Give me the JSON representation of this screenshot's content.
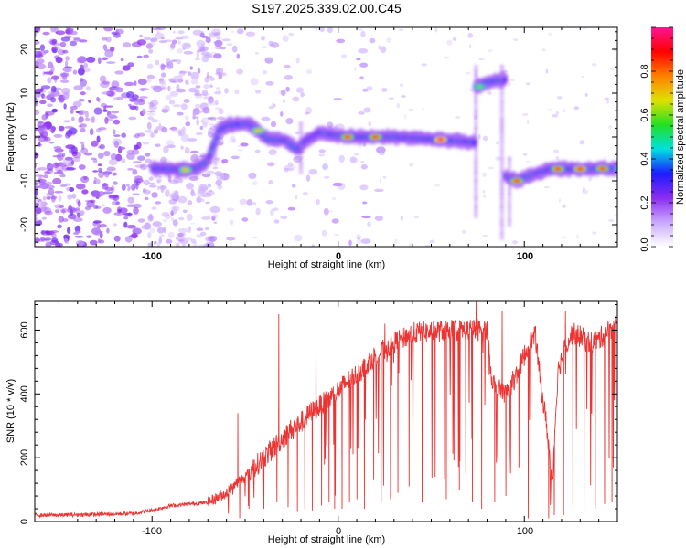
{
  "title": "S197.2025.339.02.00.C45",
  "colors": {
    "snr_line": "#ee3333",
    "track_purple": "#8a2be2",
    "noise_purple": "#7b3fe4",
    "colormap": [
      "#ffffff",
      "#c9a8ff",
      "#8c2cf0",
      "#1c1cff",
      "#00e0e0",
      "#22e022",
      "#e0e000",
      "#ff8000",
      "#ff0000",
      "#ff1493"
    ]
  },
  "chart_data": [
    {
      "type": "heatmap",
      "name": "spectrogram",
      "xlabel": "Height of straight line (km)",
      "ylabel": "Frequency (Hz)",
      "xlim": [
        -163,
        150
      ],
      "ylim": [
        -25,
        25
      ],
      "xticks": [
        "-100",
        "0",
        "100"
      ],
      "yticks": [
        "20",
        "10",
        "0",
        "-10",
        "-20"
      ],
      "ridge": [
        {
          "x": -100,
          "f": -7.2
        },
        {
          "x": -90,
          "f": -7.3
        },
        {
          "x": -82,
          "f": -7.5
        },
        {
          "x": -75,
          "f": -7.0
        },
        {
          "x": -70,
          "f": -5.5
        },
        {
          "x": -67,
          "f": -2.0
        },
        {
          "x": -64,
          "f": 1.5
        },
        {
          "x": -60,
          "f": 2.5
        },
        {
          "x": -55,
          "f": 2.8
        },
        {
          "x": -48,
          "f": 3.0
        },
        {
          "x": -43,
          "f": 1.5
        },
        {
          "x": -38,
          "f": -0.5
        },
        {
          "x": -28,
          "f": -0.8
        },
        {
          "x": -22,
          "f": -3.0
        },
        {
          "x": -18,
          "f": -1.0
        },
        {
          "x": -10,
          "f": 1.0
        },
        {
          "x": 0,
          "f": 0.3
        },
        {
          "x": 10,
          "f": 0.0
        },
        {
          "x": 30,
          "f": 0.0
        },
        {
          "x": 55,
          "f": -0.6
        },
        {
          "x": 72,
          "f": -1.2
        },
        {
          "x": 75,
          "f": 11.5
        },
        {
          "x": 80,
          "f": 12.5
        },
        {
          "x": 88,
          "f": 13.0
        },
        {
          "x": 91,
          "f": -9.0
        },
        {
          "x": 96,
          "f": -10.0
        },
        {
          "x": 105,
          "f": -8.5
        },
        {
          "x": 115,
          "f": -7.2
        },
        {
          "x": 130,
          "f": -7.3
        },
        {
          "x": 150,
          "f": -7.2
        }
      ],
      "peaks": [
        {
          "x": -82,
          "f": -7.5,
          "amp": 0.7
        },
        {
          "x": -43,
          "f": 1.5,
          "amp": 0.7
        },
        {
          "x": 5,
          "f": 0.0,
          "amp": 0.85
        },
        {
          "x": 20,
          "f": 0.0,
          "amp": 0.85
        },
        {
          "x": 55,
          "f": -0.6,
          "amp": 0.95
        },
        {
          "x": 76,
          "f": 11.5,
          "amp": 0.6
        },
        {
          "x": 96,
          "f": -10.0,
          "amp": 0.85
        },
        {
          "x": 118,
          "f": -7.3,
          "amp": 0.85
        },
        {
          "x": 130,
          "f": -7.3,
          "amp": 0.9
        },
        {
          "x": 142,
          "f": -7.2,
          "amp": 0.85
        }
      ]
    },
    {
      "type": "colorbar",
      "name": "amplitude-colorbar",
      "label": "Normalized spectral amplitude",
      "range": [
        0,
        1
      ],
      "ticks": [
        "0.0",
        "0.2",
        "0.4",
        "0.6",
        "0.8"
      ]
    },
    {
      "type": "line",
      "name": "snr",
      "xlabel": "Height of straight line (km)",
      "ylabel": "SNR (10 * v/v)",
      "xlim": [
        -163,
        150
      ],
      "ylim": [
        0,
        690
      ],
      "xticks": [
        "-100",
        "0",
        "100"
      ],
      "yticks": [
        "0",
        "200",
        "400",
        "600"
      ],
      "series": [
        {
          "name": "SNR",
          "x": [
            -163,
            -150,
            -130,
            -110,
            -100,
            -90,
            -80,
            -70,
            -60,
            -55,
            -50,
            -45,
            -40,
            -35,
            -30,
            -25,
            -20,
            -15,
            -10,
            -5,
            0,
            5,
            10,
            15,
            20,
            30,
            40,
            50,
            60,
            70,
            80,
            82,
            85,
            88,
            90,
            95,
            100,
            103,
            106,
            108,
            110,
            112,
            115,
            118,
            122,
            126,
            130,
            135,
            140,
            145,
            150
          ],
          "y": [
            20,
            20,
            22,
            25,
            35,
            50,
            55,
            60,
            90,
            120,
            140,
            170,
            200,
            230,
            260,
            290,
            310,
            340,
            360,
            385,
            410,
            440,
            460,
            490,
            520,
            560,
            590,
            595,
            600,
            600,
            600,
            470,
            400,
            420,
            400,
            450,
            520,
            560,
            580,
            470,
            380,
            300,
            120,
            470,
            550,
            590,
            580,
            560,
            570,
            600,
            620
          ],
          "spikes_up": [
            {
              "x": -54,
              "y": 340
            },
            {
              "x": -32,
              "y": 650
            },
            {
              "x": -12,
              "y": 590
            },
            {
              "x": 25,
              "y": 620
            },
            {
              "x": 74,
              "y": 690
            },
            {
              "x": 88,
              "y": 660
            },
            {
              "x": 122,
              "y": 660
            }
          ],
          "dropouts": [
            {
              "x": -53,
              "y": 10
            },
            {
              "x": -48,
              "y": 40
            },
            {
              "x": -40,
              "y": 40
            },
            {
              "x": -33,
              "y": 60
            },
            {
              "x": -27,
              "y": 45
            },
            {
              "x": -22,
              "y": 30
            },
            {
              "x": -18,
              "y": 40
            },
            {
              "x": -14,
              "y": 35
            },
            {
              "x": -9,
              "y": 50
            },
            {
              "x": -5,
              "y": 60
            },
            {
              "x": -2,
              "y": 40
            },
            {
              "x": 2,
              "y": 40
            },
            {
              "x": 6,
              "y": 60
            },
            {
              "x": 10,
              "y": 70
            },
            {
              "x": 14,
              "y": 40
            },
            {
              "x": 19,
              "y": 130
            },
            {
              "x": 23,
              "y": 60
            },
            {
              "x": 28,
              "y": 70
            },
            {
              "x": 32,
              "y": 90
            },
            {
              "x": 38,
              "y": 110
            },
            {
              "x": 45,
              "y": 60
            },
            {
              "x": 52,
              "y": 140
            },
            {
              "x": 58,
              "y": 70
            },
            {
              "x": 65,
              "y": 100
            },
            {
              "x": 72,
              "y": 60
            },
            {
              "x": 77,
              "y": 40
            },
            {
              "x": 84,
              "y": 60
            },
            {
              "x": 90,
              "y": 80
            },
            {
              "x": 97,
              "y": 170
            },
            {
              "x": 102,
              "y": 10
            },
            {
              "x": 113,
              "y": 10
            },
            {
              "x": 116,
              "y": 20
            },
            {
              "x": 121,
              "y": 20
            },
            {
              "x": 126,
              "y": 50
            },
            {
              "x": 132,
              "y": 30
            },
            {
              "x": 138,
              "y": 40
            },
            {
              "x": 143,
              "y": 55
            },
            {
              "x": 147,
              "y": 60
            }
          ]
        }
      ]
    }
  ]
}
